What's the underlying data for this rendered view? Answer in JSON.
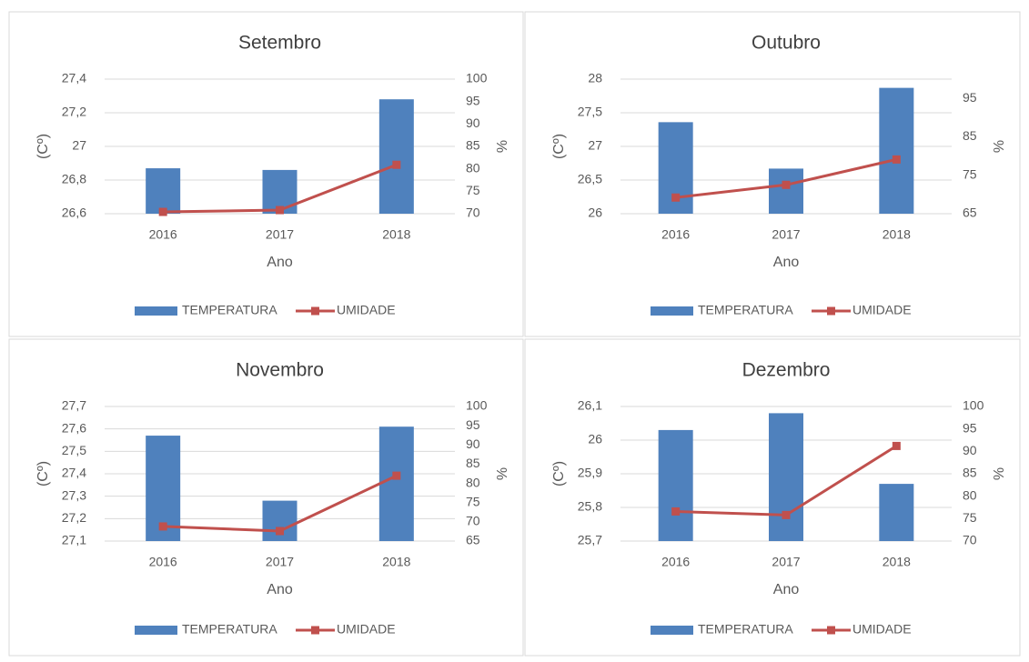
{
  "chart_data": [
    {
      "type": "combo",
      "title": "Setembro",
      "categories": [
        "2016",
        "2017",
        "2018"
      ],
      "x_label": "Ano",
      "y_label": "(Cº)",
      "y2_label": "%",
      "ylim": [
        26.6,
        27.4
      ],
      "yticks": [
        {
          "value": 26.6,
          "label": "26,6"
        },
        {
          "value": 26.8,
          "label": "26,8"
        },
        27,
        {
          "value": 27.2,
          "label": "27,2"
        },
        {
          "value": 27.4,
          "label": "27,4"
        }
      ],
      "y2lim": [
        70,
        100
      ],
      "y2ticks": [
        70,
        75,
        80,
        85,
        90,
        95,
        100
      ],
      "grid": true,
      "series": [
        {
          "name": "TEMPERATURA",
          "type": "bar",
          "color": "#4f81bd",
          "values": [
            26.87,
            26.86,
            27.28
          ]
        },
        {
          "name": "UMIDADE",
          "type": "line",
          "axis": "y2",
          "color": "#c0504d",
          "values": [
            70.4,
            70.8,
            80.9
          ]
        }
      ]
    },
    {
      "type": "combo",
      "title": "Outubro",
      "categories": [
        "2016",
        "2017",
        "2018"
      ],
      "x_label": "Ano",
      "y_label": "(Cº)",
      "y2_label": "%",
      "ylim": [
        26,
        28
      ],
      "yticks": [
        26,
        {
          "value": 26.5,
          "label": "26,5"
        },
        27,
        {
          "value": 27.5,
          "label": "27,5"
        },
        28
      ],
      "y2lim": [
        65,
        100
      ],
      "y2ticks": [
        65,
        75,
        85,
        95
      ],
      "grid": true,
      "series": [
        {
          "name": "TEMPERATURA",
          "type": "bar",
          "color": "#4f81bd",
          "values": [
            27.36,
            26.67,
            27.87
          ]
        },
        {
          "name": "UMIDADE",
          "type": "line",
          "axis": "y2",
          "color": "#c0504d",
          "values": [
            69.2,
            72.5,
            79.1
          ]
        }
      ]
    },
    {
      "type": "combo",
      "title": "Novembro",
      "categories": [
        "2016",
        "2017",
        "2018"
      ],
      "x_label": "Ano",
      "y_label": "(Cº)",
      "y2_label": "%",
      "ylim": [
        27.1,
        27.7
      ],
      "yticks": [
        {
          "value": 27.1,
          "label": "27,1"
        },
        {
          "value": 27.2,
          "label": "27,2"
        },
        {
          "value": 27.3,
          "label": "27,3"
        },
        {
          "value": 27.4,
          "label": "27,4"
        },
        {
          "value": 27.5,
          "label": "27,5"
        },
        {
          "value": 27.6,
          "label": "27,6"
        },
        {
          "value": 27.7,
          "label": "27,7"
        }
      ],
      "y2lim": [
        65,
        100
      ],
      "y2ticks": [
        65,
        70,
        75,
        80,
        85,
        90,
        95,
        100
      ],
      "grid": true,
      "series": [
        {
          "name": "TEMPERATURA",
          "type": "bar",
          "color": "#4f81bd",
          "values": [
            27.57,
            27.28,
            27.61
          ]
        },
        {
          "name": "UMIDADE",
          "type": "line",
          "axis": "y2",
          "color": "#c0504d",
          "values": [
            68.8,
            67.6,
            82.0
          ]
        }
      ]
    },
    {
      "type": "combo",
      "title": "Dezembro",
      "categories": [
        "2016",
        "2017",
        "2018"
      ],
      "x_label": "Ano",
      "y_label": "(Cº)",
      "y2_label": "%",
      "ylim": [
        25.7,
        26.1
      ],
      "yticks": [
        {
          "value": 25.7,
          "label": "25,7"
        },
        {
          "value": 25.8,
          "label": "25,8"
        },
        {
          "value": 25.9,
          "label": "25,9"
        },
        26,
        {
          "value": 26.1,
          "label": "26,1"
        }
      ],
      "y2lim": [
        70,
        100
      ],
      "y2ticks": [
        70,
        75,
        80,
        85,
        90,
        95,
        100
      ],
      "grid": true,
      "series": [
        {
          "name": "TEMPERATURA",
          "type": "bar",
          "color": "#4f81bd",
          "values": [
            26.03,
            26.08,
            25.87
          ]
        },
        {
          "name": "UMIDADE",
          "type": "line",
          "axis": "y2",
          "color": "#c0504d",
          "values": [
            76.6,
            75.8,
            91.2
          ]
        }
      ]
    }
  ]
}
